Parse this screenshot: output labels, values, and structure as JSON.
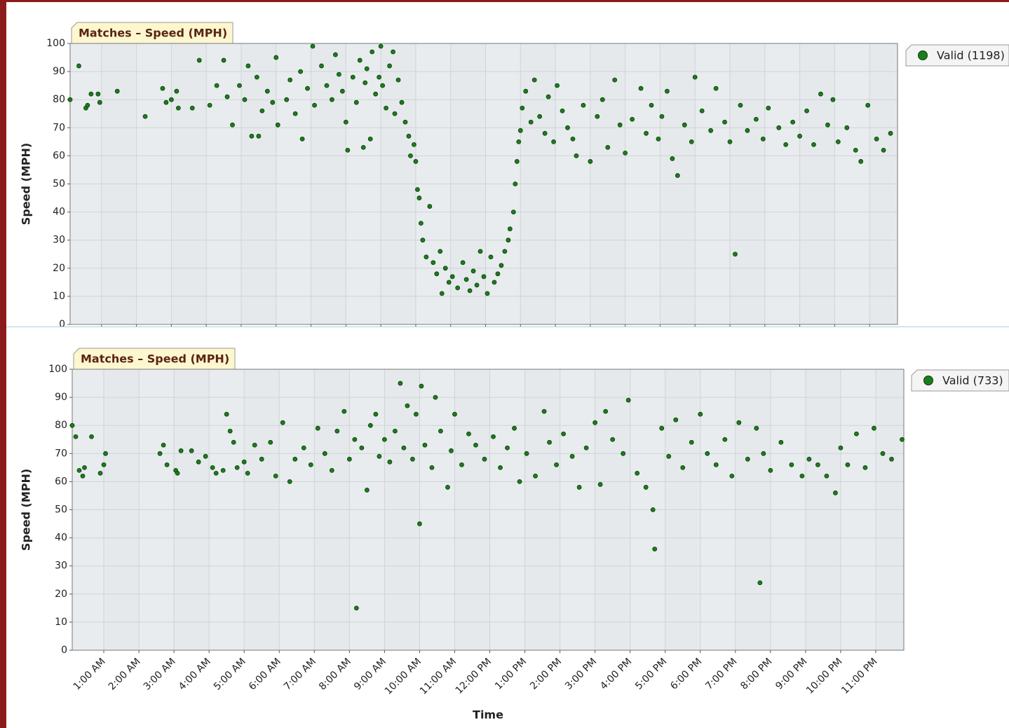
{
  "chart_data": [
    {
      "type": "scatter",
      "title": "Matches – Speed (MPH)",
      "y_label": "Speed (MPH)",
      "xlim": [
        0.1,
        23.8
      ],
      "ylim": [
        0,
        100
      ],
      "yticks": [
        0,
        10,
        20,
        30,
        40,
        50,
        60,
        70,
        80,
        90,
        100
      ],
      "xticks": [
        1,
        2,
        3,
        4,
        5,
        6,
        7,
        8,
        9,
        10,
        11,
        12,
        13,
        14,
        15,
        16,
        17,
        18,
        19,
        20,
        21,
        22,
        23
      ],
      "grid": true,
      "legend": "right",
      "series": [
        {
          "name": "Valid (1198)",
          "color": "#1b7d1b",
          "x": [
            0.1,
            0.35,
            0.55,
            0.6,
            0.7,
            0.9,
            0.95,
            1.45,
            2.25,
            2.75,
            2.85,
            3.0,
            3.15,
            3.2,
            3.6,
            3.8,
            4.1,
            4.3,
            4.5,
            4.6,
            4.75,
            4.95,
            5.1,
            5.2,
            5.3,
            5.45,
            5.5,
            5.6,
            5.75,
            5.9,
            6.0,
            6.05,
            6.3,
            6.4,
            6.55,
            6.7,
            6.75,
            6.9,
            7.05,
            7.1,
            7.3,
            7.45,
            7.6,
            7.7,
            7.8,
            7.9,
            8.0,
            8.05,
            8.2,
            8.3,
            8.4,
            8.5,
            8.55,
            8.6,
            8.7,
            8.75,
            8.85,
            8.95,
            9.0,
            9.05,
            9.15,
            9.25,
            9.35,
            9.4,
            9.5,
            9.6,
            9.7,
            9.8,
            9.85,
            9.95,
            10.0,
            10.05,
            10.1,
            10.15,
            10.2,
            10.3,
            10.4,
            10.5,
            10.6,
            10.7,
            10.75,
            10.85,
            10.95,
            11.05,
            11.2,
            11.35,
            11.45,
            11.55,
            11.65,
            11.75,
            11.85,
            11.95,
            12.05,
            12.15,
            12.25,
            12.35,
            12.45,
            12.55,
            12.65,
            12.7,
            12.8,
            12.85,
            12.9,
            12.95,
            13.0,
            13.05,
            13.15,
            13.3,
            13.4,
            13.55,
            13.7,
            13.8,
            13.95,
            14.05,
            14.2,
            14.35,
            14.5,
            14.6,
            14.8,
            15.0,
            15.2,
            15.35,
            15.5,
            15.7,
            15.85,
            16.0,
            16.2,
            16.45,
            16.6,
            16.75,
            16.95,
            17.05,
            17.2,
            17.35,
            17.5,
            17.7,
            17.9,
            18.0,
            18.2,
            18.45,
            18.6,
            18.85,
            19.0,
            19.15,
            19.3,
            19.5,
            19.75,
            19.95,
            20.1,
            20.4,
            20.6,
            20.8,
            21.0,
            21.2,
            21.4,
            21.6,
            21.8,
            21.95,
            22.1,
            22.35,
            22.6,
            22.75,
            22.95,
            23.2,
            23.4,
            23.6
          ],
          "values": [
            80,
            92,
            77,
            78,
            82,
            82,
            79,
            83,
            74,
            84,
            79,
            80,
            83,
            77,
            77,
            94,
            78,
            85,
            94,
            81,
            71,
            85,
            80,
            92,
            67,
            88,
            67,
            76,
            83,
            79,
            95,
            71,
            80,
            87,
            75,
            90,
            66,
            84,
            99,
            78,
            92,
            85,
            80,
            96,
            89,
            83,
            72,
            62,
            88,
            79,
            94,
            63,
            86,
            91,
            66,
            97,
            82,
            88,
            99,
            85,
            77,
            92,
            97,
            75,
            87,
            79,
            72,
            67,
            60,
            64,
            58,
            48,
            45,
            36,
            30,
            24,
            42,
            22,
            18,
            26,
            11,
            20,
            15,
            17,
            13,
            22,
            16,
            12,
            19,
            14,
            26,
            17,
            11,
            24,
            15,
            18,
            21,
            26,
            30,
            34,
            40,
            50,
            58,
            65,
            69,
            77,
            83,
            72,
            87,
            74,
            68,
            81,
            65,
            85,
            76,
            70,
            66,
            60,
            78,
            58,
            74,
            80,
            63,
            87,
            71,
            61,
            73,
            84,
            68,
            78,
            66,
            74,
            83,
            59,
            53,
            71,
            65,
            88,
            76,
            69,
            84,
            72,
            65,
            25,
            78,
            69,
            73,
            66,
            77,
            70,
            64,
            72,
            67,
            76,
            64,
            82,
            71,
            80,
            65,
            70,
            62,
            58,
            78,
            66,
            62,
            68
          ]
        }
      ]
    },
    {
      "type": "scatter",
      "title": "Matches – Speed (MPH)",
      "y_label": "Speed (MPH)",
      "x_label": "Time",
      "xlim": [
        0.1,
        23.8
      ],
      "ylim": [
        0,
        100
      ],
      "yticks": [
        0,
        10,
        20,
        30,
        40,
        50,
        60,
        70,
        80,
        90,
        100
      ],
      "xticks": [
        {
          "value": 1,
          "label": "1:00 AM"
        },
        {
          "value": 2,
          "label": "2:00 AM"
        },
        {
          "value": 3,
          "label": "3:00 AM"
        },
        {
          "value": 4,
          "label": "4:00 AM"
        },
        {
          "value": 5,
          "label": "5:00 AM"
        },
        {
          "value": 6,
          "label": "6:00 AM"
        },
        {
          "value": 7,
          "label": "7:00 AM"
        },
        {
          "value": 8,
          "label": "8:00 AM"
        },
        {
          "value": 9,
          "label": "9:00 AM"
        },
        {
          "value": 10,
          "label": "10:00 AM"
        },
        {
          "value": 11,
          "label": "11:00 AM"
        },
        {
          "value": 12,
          "label": "12:00 PM"
        },
        {
          "value": 13,
          "label": "1:00 PM"
        },
        {
          "value": 14,
          "label": "2:00 PM"
        },
        {
          "value": 15,
          "label": "3:00 PM"
        },
        {
          "value": 16,
          "label": "4:00 PM"
        },
        {
          "value": 17,
          "label": "5:00 PM"
        },
        {
          "value": 18,
          "label": "6:00 PM"
        },
        {
          "value": 19,
          "label": "7:00 PM"
        },
        {
          "value": 20,
          "label": "8:00 PM"
        },
        {
          "value": 21,
          "label": "9:00 PM"
        },
        {
          "value": 22,
          "label": "10:00 PM"
        },
        {
          "value": 23,
          "label": "11:00 PM"
        }
      ],
      "grid": true,
      "legend": "right",
      "series": [
        {
          "name": "Valid (733)",
          "color": "#1b7d1b",
          "x": [
            0.1,
            0.2,
            0.3,
            0.4,
            0.45,
            0.65,
            0.9,
            1.0,
            1.05,
            2.6,
            2.7,
            2.8,
            3.05,
            3.1,
            3.2,
            3.5,
            3.7,
            3.9,
            4.1,
            4.2,
            4.4,
            4.5,
            4.6,
            4.7,
            4.8,
            5.0,
            5.1,
            5.3,
            5.5,
            5.75,
            5.9,
            6.1,
            6.3,
            6.45,
            6.7,
            6.9,
            7.1,
            7.3,
            7.5,
            7.65,
            7.85,
            8.0,
            8.15,
            8.2,
            8.35,
            8.5,
            8.6,
            8.75,
            8.85,
            9.0,
            9.15,
            9.3,
            9.45,
            9.55,
            9.65,
            9.8,
            9.9,
            10.0,
            10.05,
            10.15,
            10.35,
            10.45,
            10.6,
            10.8,
            10.9,
            11.0,
            11.2,
            11.4,
            11.6,
            11.85,
            12.1,
            12.3,
            12.5,
            12.7,
            12.85,
            13.05,
            13.3,
            13.55,
            13.7,
            13.9,
            14.1,
            14.35,
            14.55,
            14.75,
            15.0,
            15.15,
            15.3,
            15.5,
            15.8,
            15.95,
            16.2,
            16.45,
            16.65,
            16.7,
            16.9,
            17.1,
            17.3,
            17.5,
            17.75,
            18.0,
            18.2,
            18.45,
            18.7,
            18.9,
            19.1,
            19.35,
            19.6,
            19.7,
            19.8,
            20.0,
            20.3,
            20.6,
            20.9,
            21.1,
            21.35,
            21.6,
            21.85,
            22.0,
            22.2,
            22.45,
            22.7,
            22.95,
            23.2,
            23.45,
            23.75
          ],
          "values": [
            80,
            76,
            64,
            62,
            65,
            76,
            63,
            66,
            70,
            70,
            73,
            66,
            64,
            63,
            71,
            71,
            67,
            69,
            65,
            63,
            64,
            84,
            78,
            74,
            65,
            67,
            63,
            73,
            68,
            74,
            62,
            81,
            60,
            68,
            72,
            66,
            79,
            70,
            64,
            78,
            85,
            68,
            75,
            15,
            72,
            57,
            80,
            84,
            69,
            75,
            67,
            78,
            95,
            72,
            87,
            68,
            84,
            45,
            94,
            73,
            65,
            90,
            78,
            58,
            71,
            84,
            66,
            77,
            73,
            68,
            76,
            65,
            72,
            79,
            60,
            70,
            62,
            85,
            74,
            66,
            77,
            69,
            58,
            72,
            81,
            59,
            85,
            75,
            70,
            89,
            63,
            58,
            50,
            36,
            79,
            69,
            82,
            65,
            74,
            84,
            70,
            66,
            75,
            62,
            81,
            68,
            79,
            24,
            70,
            64,
            74,
            66,
            62,
            68,
            66,
            62,
            56,
            72,
            66,
            77,
            65,
            79,
            70,
            68,
            75
          ]
        }
      ]
    }
  ]
}
